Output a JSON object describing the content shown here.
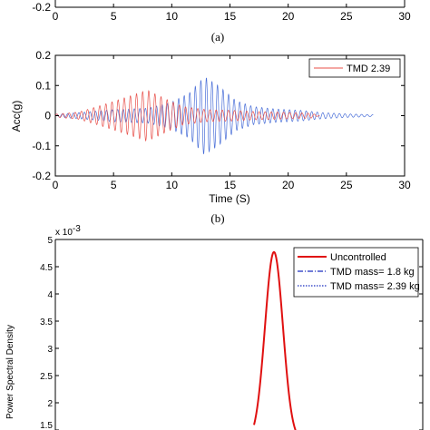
{
  "chart_data": [
    {
      "panel": "a",
      "type": "line",
      "xlim": [
        0,
        30
      ],
      "x_ticks": [
        "0",
        "5",
        "10",
        "15",
        "20",
        "25",
        "30"
      ],
      "y_ticks_visible": [
        "-0.2"
      ],
      "label": "(a)"
    },
    {
      "panel": "b",
      "type": "line",
      "xlabel": "Time (S)",
      "ylabel": "Acc(g)",
      "xlim": [
        0,
        30
      ],
      "ylim": [
        -0.2,
        0.2
      ],
      "x_ticks": [
        "0",
        "5",
        "10",
        "15",
        "20",
        "25",
        "30"
      ],
      "y_ticks": [
        "-0.2",
        "-0.1",
        "0",
        "0.1",
        "0.2"
      ],
      "legend_entry": "TMD 2.39",
      "label": "(b)",
      "series": [
        {
          "name": "TMD 2.39",
          "color": "#e8504a",
          "envelope": {
            "t": [
              0,
              2,
              4,
              6,
              7.9,
              9.5,
              11,
              13,
              15,
              17,
              19,
              22,
              22.7
            ],
            "amp": [
              0.005,
              0.012,
              0.035,
              0.06,
              0.085,
              0.055,
              0.03,
              0.02,
              0.018,
              0.014,
              0.012,
              0.008,
              0
            ]
          }
        },
        {
          "color": "#4a6fd8",
          "envelope": {
            "t": [
              0,
              2,
              5,
              8,
              10,
              11.5,
              12.8,
              14,
              15.5,
              17,
              19,
              21,
              23,
              25,
              27.3
            ],
            "amp": [
              0.004,
              0.01,
              0.02,
              0.025,
              0.045,
              0.075,
              0.13,
              0.1,
              0.05,
              0.03,
              0.022,
              0.018,
              0.01,
              0.006,
              0.003
            ]
          }
        }
      ]
    },
    {
      "panel": "c",
      "type": "line",
      "ylabel": "Power Spectral Density",
      "y_exponent": "x 10",
      "y_exponent_power": "-3",
      "ylim_visible": [
        1.5,
        5
      ],
      "y_ticks": [
        "1.5",
        "2",
        "2.5",
        "3",
        "3.5",
        "4",
        "4.5",
        "5"
      ],
      "legend": [
        {
          "name": "Uncontrolled",
          "color": "#e01010",
          "style": "solid"
        },
        {
          "name": "TMD mass= 1.8 kg",
          "color": "#1a2fbf",
          "style": "dashdot"
        },
        {
          "name": "TMD mass= 2.39 kg",
          "color": "#1a2fbf",
          "style": "dotted"
        }
      ],
      "series": [
        {
          "name": "Uncontrolled",
          "peak_value": 4.77,
          "color": "#e01010"
        }
      ]
    }
  ]
}
